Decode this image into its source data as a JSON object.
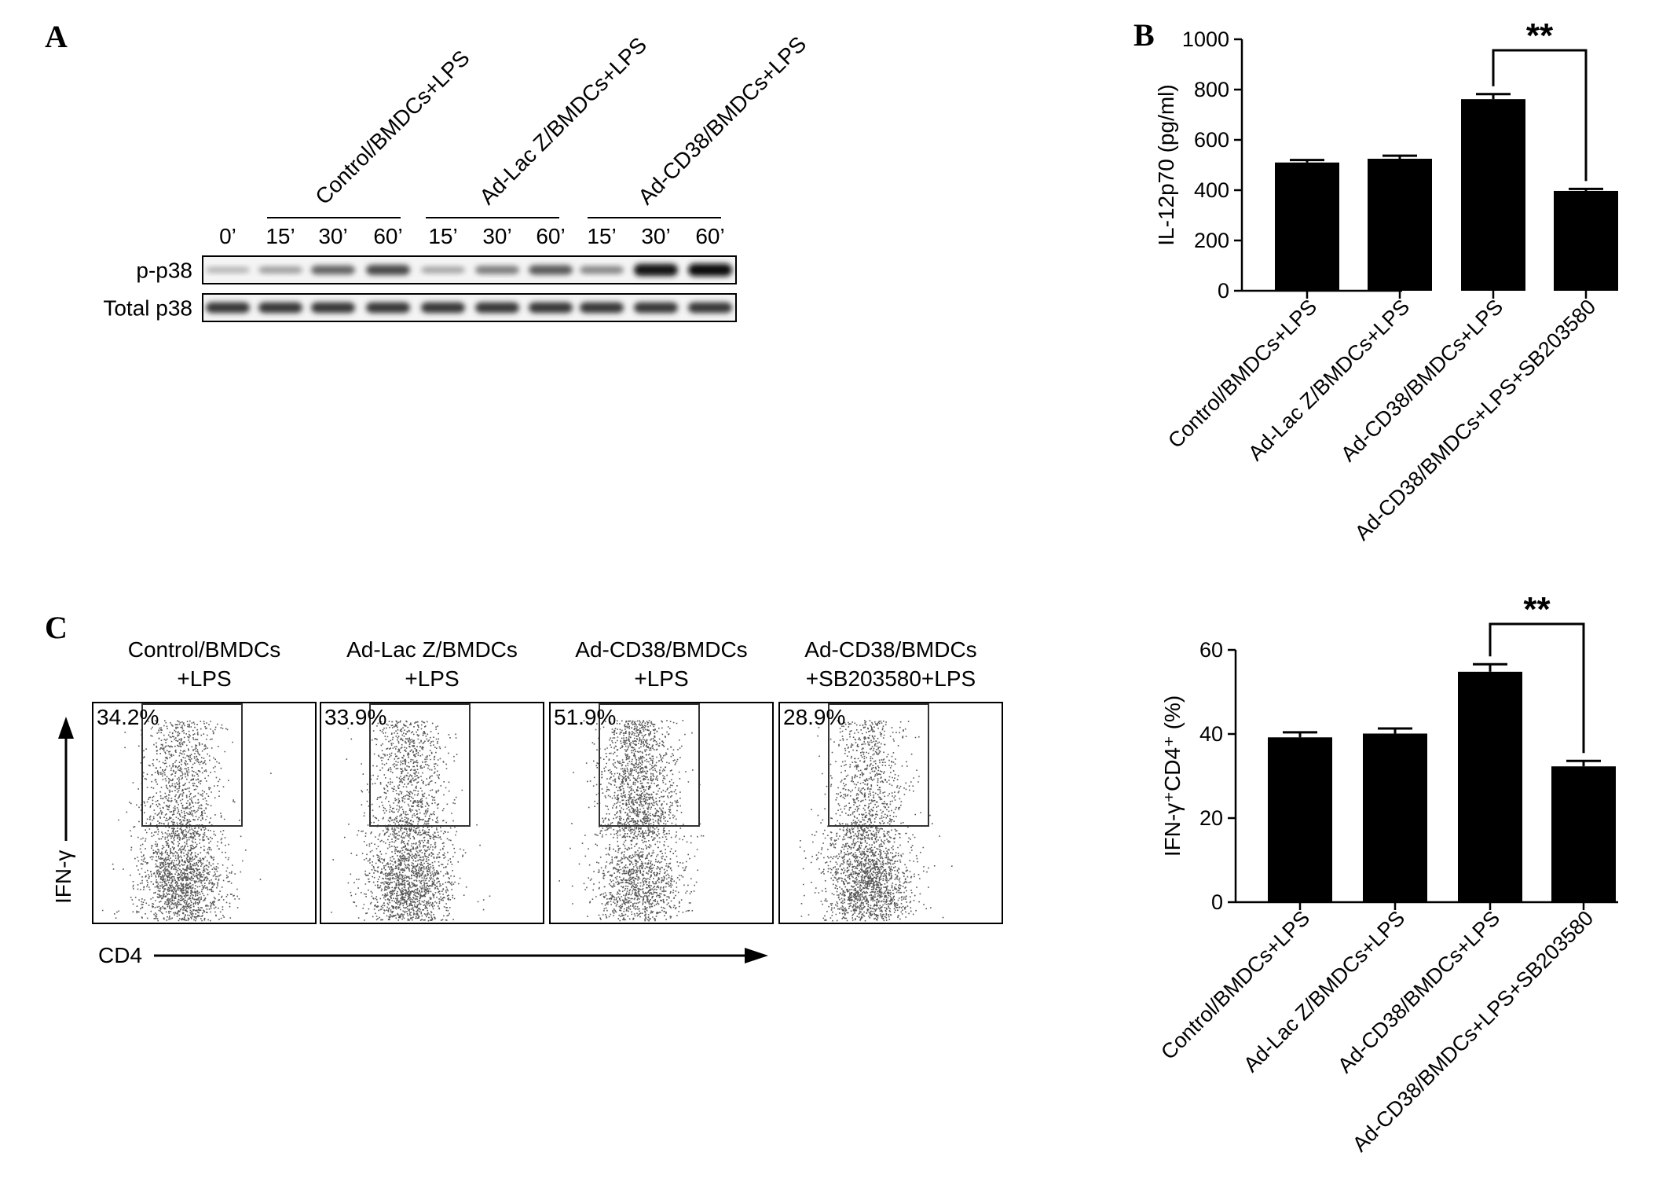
{
  "panels": {
    "a": {
      "letter": "A",
      "groups": [
        "Control/BMDCs+LPS",
        "Ad-Lac Z/BMDCs+LPS",
        "Ad-CD38/BMDCs+LPS"
      ],
      "time_points": [
        "0’",
        "15’",
        "30’",
        "60’",
        "15’",
        "30’",
        "60’",
        "15’",
        "30’",
        "60’"
      ],
      "rows": [
        {
          "label": "p-p38",
          "intensity": [
            0.25,
            0.35,
            0.6,
            0.72,
            0.32,
            0.5,
            0.65,
            0.45,
            0.95,
            1.0
          ]
        },
        {
          "label": "Total p38",
          "intensity": [
            0.8,
            0.8,
            0.8,
            0.8,
            0.8,
            0.8,
            0.8,
            0.8,
            0.8,
            0.8
          ]
        }
      ]
    },
    "b": {
      "letter": "B"
    },
    "c": {
      "letter": "C",
      "plots": [
        {
          "title_line1": "Control/BMDCs",
          "title_line2": "+LPS",
          "percent": "34.2%"
        },
        {
          "title_line1": "Ad-Lac Z/BMDCs",
          "title_line2": "+LPS",
          "percent": "33.9%"
        },
        {
          "title_line1": "Ad-CD38/BMDCs",
          "title_line2": "+LPS",
          "percent": "51.9%"
        },
        {
          "title_line1": "Ad-CD38/BMDCs",
          "title_line2": "+SB203580+LPS",
          "percent": "28.9%"
        }
      ],
      "y_axis_label": "IFN-γ",
      "x_axis_label": "CD4"
    }
  },
  "chart_data": [
    {
      "type": "bar",
      "panel": "B",
      "categories": [
        "Control/BMDCs+LPS",
        "Ad-Lac Z/BMDCs+LPS",
        "Ad-CD38/BMDCs+LPS",
        "Ad-CD38/BMDCs+LPS+SB203580"
      ],
      "values": [
        510,
        525,
        762,
        397
      ],
      "errors": [
        10,
        12,
        20,
        8
      ],
      "ylabel": "IL-12p70 (pg/ml)",
      "ylim": [
        0,
        1000
      ],
      "yticks": [
        0,
        200,
        400,
        600,
        800,
        1000
      ],
      "significance": {
        "between": [
          2,
          3
        ],
        "label": "**"
      },
      "bar_color": "#000000"
    },
    {
      "type": "bar",
      "panel": "C",
      "categories": [
        "Control/BMDCs+LPS",
        "Ad-Lac Z/BMDCs+LPS",
        "Ad-CD38/BMDCs+LPS",
        "Ad-CD38/BMDCs+LPS+SB203580"
      ],
      "values": [
        39.2,
        40.1,
        54.8,
        32.3
      ],
      "errors": [
        1.2,
        1.2,
        1.8,
        1.3
      ],
      "ylabel": "IFN-γ⁺CD4⁺ (%)",
      "ylim": [
        0,
        60
      ],
      "yticks": [
        0,
        20,
        40,
        60
      ],
      "significance": {
        "between": [
          2,
          3
        ],
        "label": "**"
      },
      "bar_color": "#000000"
    }
  ]
}
